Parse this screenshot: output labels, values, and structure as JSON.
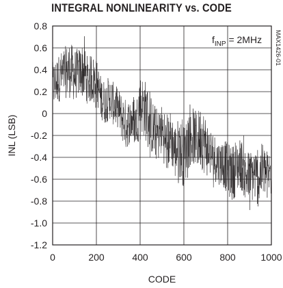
{
  "chart_data": {
    "type": "line",
    "title": "INTEGRAL NONLINEARITY vs. CODE",
    "xlabel": "CODE",
    "ylabel": "INL (LSB)",
    "xlim": [
      0,
      1000
    ],
    "ylim": [
      -1.2,
      0.8
    ],
    "grid": true,
    "x_ticks": [
      "0",
      "200",
      "400",
      "600",
      "800",
      "1000"
    ],
    "y_ticks": [
      "0.8",
      "0.6",
      "0.4",
      "0.2",
      "0",
      "-0.2",
      "-0.4",
      "-0.6",
      "-0.8",
      "-1.0",
      "-1.2"
    ],
    "annotation": {
      "prefix": "f",
      "subscript": "INP",
      "suffix": " = 2MHz"
    },
    "part_number": "MAX1426-01",
    "series": [
      {
        "x": [
          0,
          20,
          40,
          60,
          80,
          100,
          120,
          140,
          160,
          180,
          200,
          220,
          240,
          260,
          280,
          300,
          320,
          340,
          360,
          380,
          400,
          420,
          440,
          460,
          480,
          500,
          520,
          540,
          560,
          580,
          600,
          620,
          640,
          660,
          680,
          700,
          720,
          740,
          760,
          780,
          800,
          820,
          840,
          860,
          880,
          900,
          920,
          940,
          960,
          980,
          1000
        ],
        "y": [
          0.25,
          0.3,
          0.35,
          0.38,
          0.4,
          0.35,
          0.38,
          0.4,
          0.3,
          0.32,
          0.3,
          0.15,
          0.1,
          0.15,
          0.08,
          0.05,
          -0.05,
          -0.1,
          -0.05,
          -0.1,
          0.1,
          0.05,
          -0.05,
          -0.15,
          -0.2,
          -0.15,
          -0.3,
          -0.2,
          -0.35,
          -0.3,
          -0.4,
          -0.25,
          -0.2,
          -0.25,
          -0.2,
          -0.3,
          -0.35,
          -0.4,
          -0.45,
          -0.45,
          -0.5,
          -0.55,
          -0.5,
          -0.45,
          -0.55,
          -0.6,
          -0.55,
          -0.6,
          -0.5,
          -0.55,
          -0.55
        ],
        "spread": [
          0.22,
          0.22,
          0.22,
          0.24,
          0.26,
          0.24,
          0.22,
          0.26,
          0.22,
          0.22,
          0.2,
          0.2,
          0.2,
          0.2,
          0.2,
          0.18,
          0.22,
          0.22,
          0.2,
          0.2,
          0.26,
          0.28,
          0.26,
          0.26,
          0.24,
          0.24,
          0.24,
          0.24,
          0.26,
          0.28,
          0.28,
          0.26,
          0.26,
          0.26,
          0.3,
          0.28,
          0.22,
          0.22,
          0.2,
          0.22,
          0.24,
          0.26,
          0.24,
          0.24,
          0.24,
          0.26,
          0.24,
          0.26,
          0.24,
          0.22,
          0.22
        ]
      }
    ]
  }
}
